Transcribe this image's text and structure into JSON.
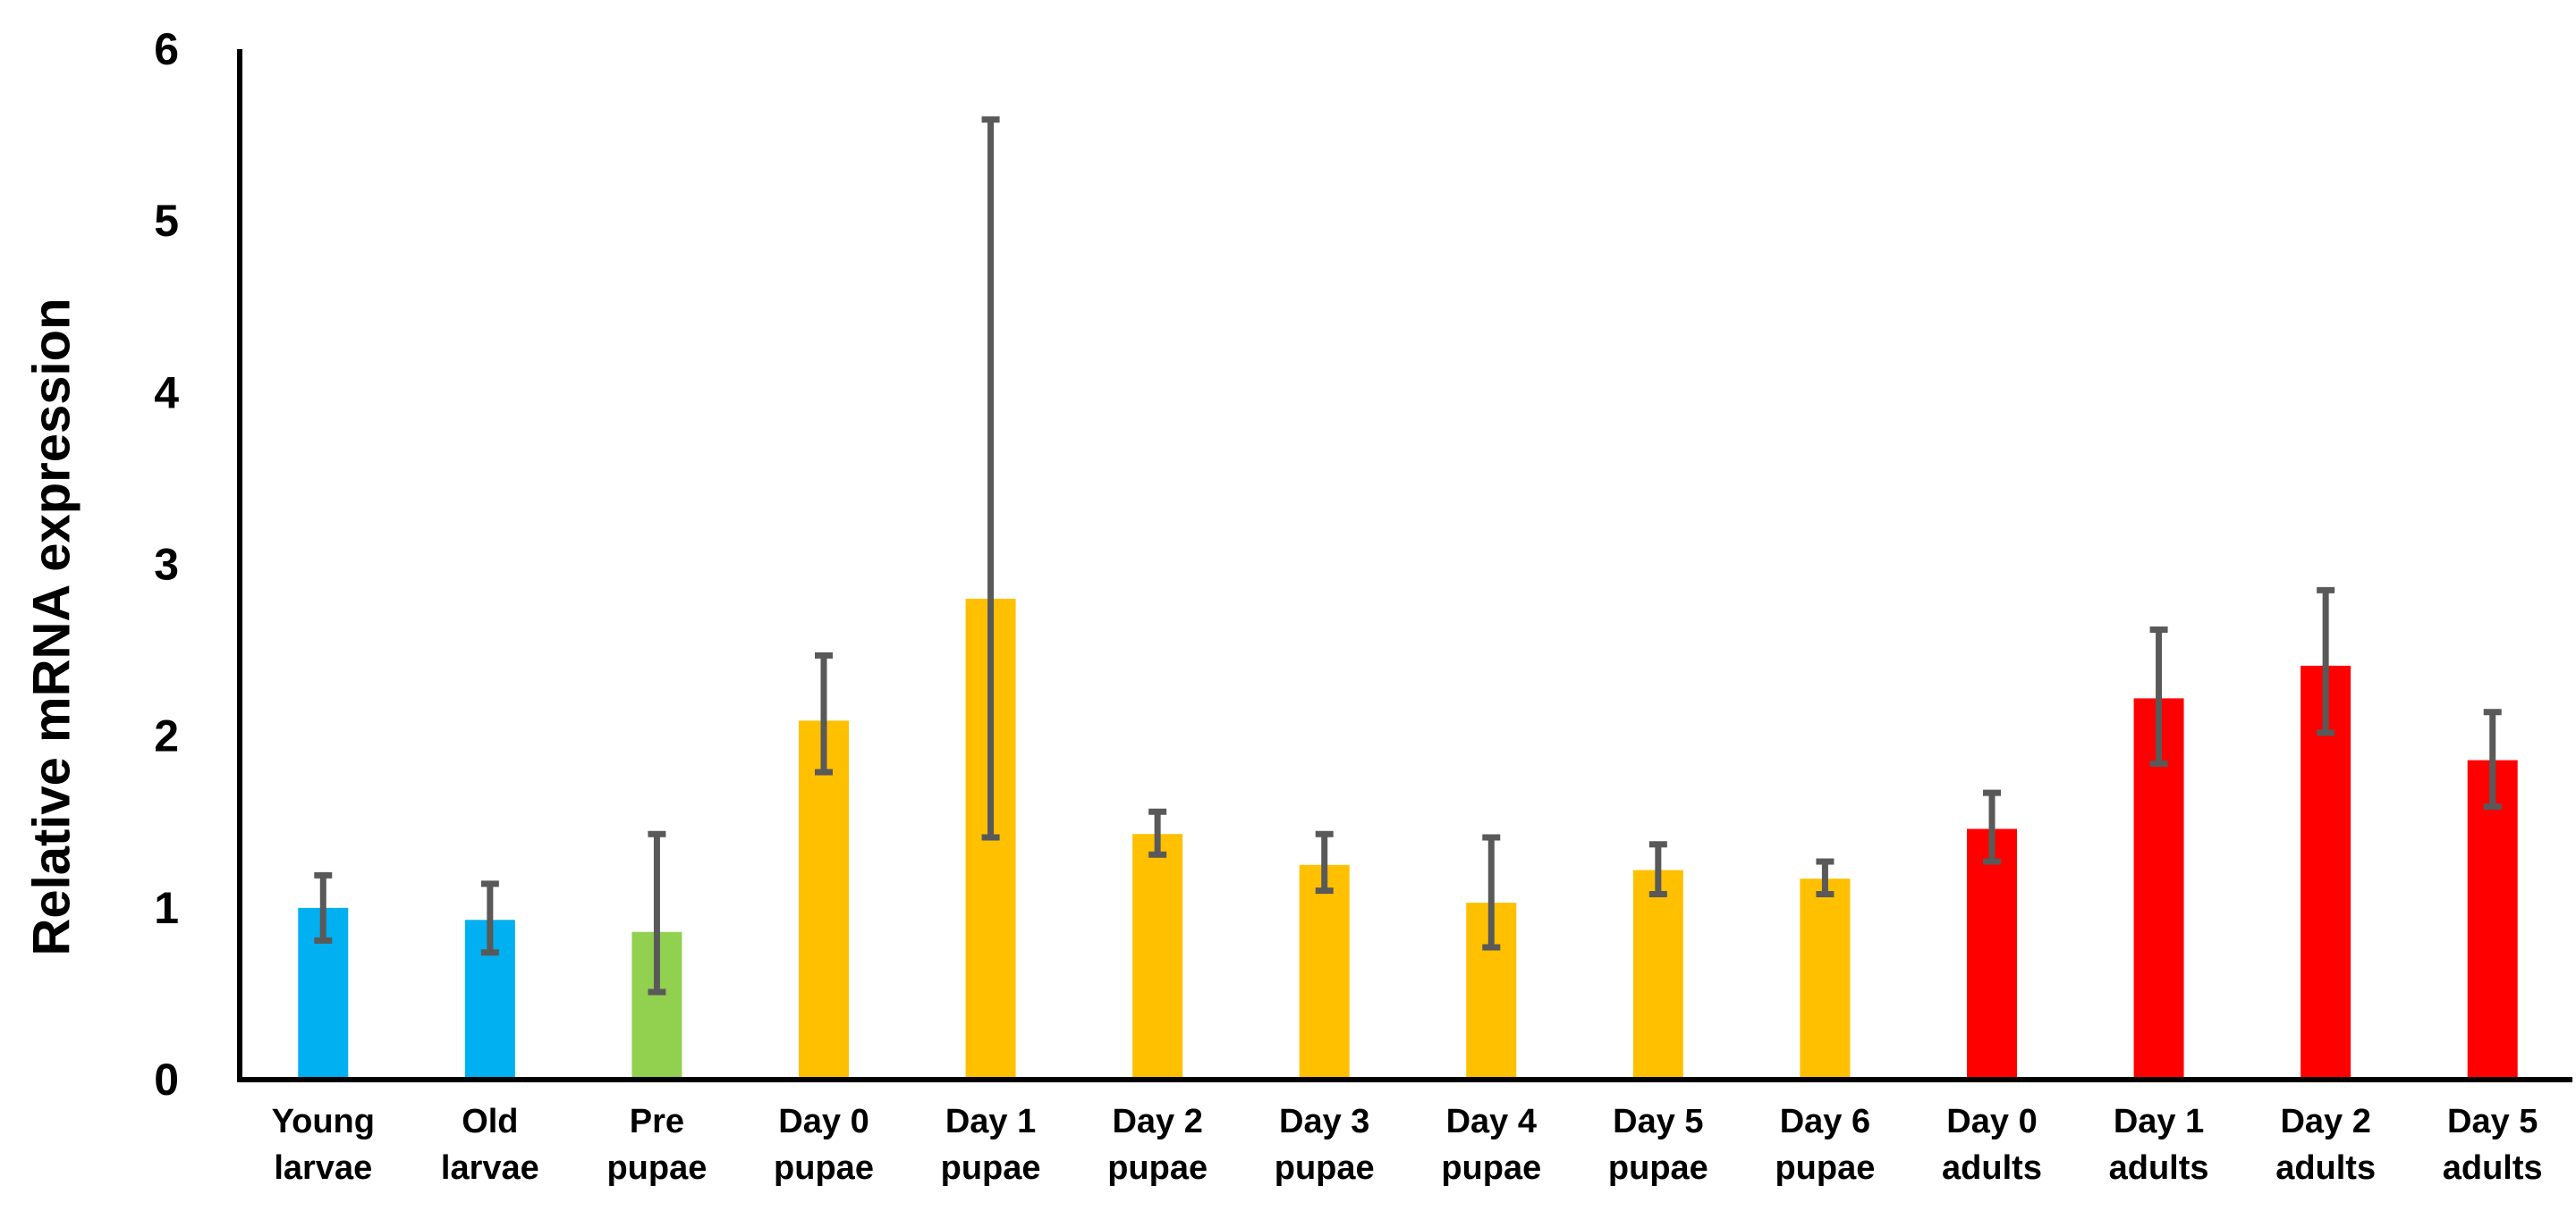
{
  "chart_data": {
    "type": "bar",
    "title": "",
    "xlabel": "",
    "ylabel": "Relative mRNA expression",
    "ylim": [
      0,
      6
    ],
    "yticks": [
      0,
      1,
      2,
      3,
      4,
      5,
      6
    ],
    "grid": false,
    "legend": "none",
    "categories": [
      [
        "Young",
        "larvae"
      ],
      [
        "Old",
        "larvae"
      ],
      [
        "Pre",
        "pupae"
      ],
      [
        "Day 0",
        "pupae"
      ],
      [
        "Day 1",
        "pupae"
      ],
      [
        "Day 2",
        "pupae"
      ],
      [
        "Day 3",
        "pupae"
      ],
      [
        "Day 4",
        "pupae"
      ],
      [
        "Day 5",
        "pupae"
      ],
      [
        "Day 6",
        "pupae"
      ],
      [
        "Day 0",
        "adults"
      ],
      [
        "Day 1",
        "adults"
      ],
      [
        "Day 2",
        "adults"
      ],
      [
        "Day 5",
        "adults"
      ]
    ],
    "values": [
      1.0,
      0.93,
      0.86,
      2.09,
      2.8,
      1.43,
      1.25,
      1.03,
      1.22,
      1.17,
      1.46,
      2.22,
      2.41,
      1.86
    ],
    "error_low": [
      0.81,
      0.74,
      0.51,
      1.79,
      1.41,
      1.31,
      1.1,
      0.77,
      1.08,
      1.08,
      1.27,
      1.84,
      2.02,
      1.59
    ],
    "error_high": [
      1.19,
      1.14,
      1.43,
      2.47,
      5.59,
      1.56,
      1.43,
      1.41,
      1.37,
      1.27,
      1.67,
      2.62,
      2.85,
      2.14
    ],
    "bar_colors": [
      "#00b0f0",
      "#00b0f0",
      "#92d050",
      "#ffc000",
      "#ffc000",
      "#ffc000",
      "#ffc000",
      "#ffc000",
      "#ffc000",
      "#ffc000",
      "#ff0000",
      "#ff0000",
      "#ff0000",
      "#ff0000"
    ],
    "error_bar_color": "#595959",
    "axis_color": "#000000"
  }
}
